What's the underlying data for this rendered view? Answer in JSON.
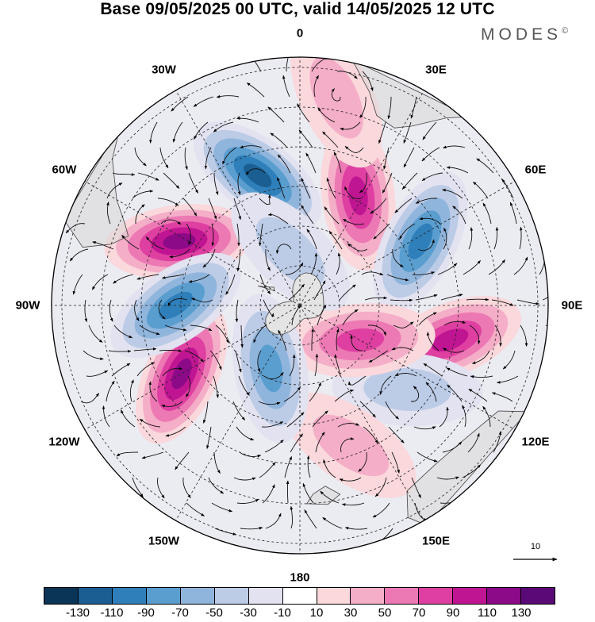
{
  "title": "Base 09/05/2025 00 UTC, valid 14/05/2025 12 UTC",
  "brand": "MODES",
  "brand_mark": "©",
  "map": {
    "projection": "south-polar-stereographic",
    "longitude_labels": [
      {
        "text": "0",
        "lon": 0
      },
      {
        "text": "30E",
        "lon": 30
      },
      {
        "text": "60E",
        "lon": 60
      },
      {
        "text": "90E",
        "lon": 90
      },
      {
        "text": "120E",
        "lon": 120
      },
      {
        "text": "150E",
        "lon": 150
      },
      {
        "text": "180",
        "lon": 180
      },
      {
        "text": "150W",
        "lon": -150
      },
      {
        "text": "120W",
        "lon": -120
      },
      {
        "text": "90W",
        "lon": -90
      },
      {
        "text": "60W",
        "lon": -60
      },
      {
        "text": "30W",
        "lon": -30
      }
    ],
    "field_centers": [
      {
        "lon": -62,
        "r": 0.55,
        "value": 125
      },
      {
        "lon": -18,
        "r": 0.55,
        "value": -120
      },
      {
        "lon": 28,
        "r": 0.5,
        "value": 90
      },
      {
        "lon": 62,
        "r": 0.55,
        "value": -90
      },
      {
        "lon": 103,
        "r": 0.62,
        "value": 90
      },
      {
        "lon": 128,
        "r": 0.55,
        "value": -45
      },
      {
        "lon": 160,
        "r": 0.6,
        "value": 40
      },
      {
        "lon": 120,
        "r": 0.28,
        "value": 70
      },
      {
        "lon": -155,
        "r": 0.28,
        "value": -80
      },
      {
        "lon": -120,
        "r": 0.55,
        "value": 115
      },
      {
        "lon": -90,
        "r": 0.5,
        "value": -90
      },
      {
        "lon": 10,
        "r": 0.85,
        "value": 40
      },
      {
        "lon": -10,
        "r": 0.22,
        "value": -30
      }
    ],
    "land": "Antarctica, southern tips of South America, Africa, Australia and New Zealand (grey)"
  },
  "reference_vector": {
    "label": "10"
  },
  "colorbar": {
    "colors": [
      "#0a3557",
      "#1b5f92",
      "#2f7fba",
      "#5a9ed0",
      "#8fb5dc",
      "#bccbe6",
      "#e2e2f0",
      "#ffffff",
      "#fad8dc",
      "#f5aec8",
      "#ec79b4",
      "#de3fa1",
      "#c01592",
      "#8c0a87",
      "#5a0a76"
    ],
    "tick_labels": [
      "-130",
      "-110",
      "-90",
      "-70",
      "-50",
      "-30",
      "-10",
      "10",
      "30",
      "50",
      "70",
      "90",
      "110",
      "130"
    ]
  }
}
